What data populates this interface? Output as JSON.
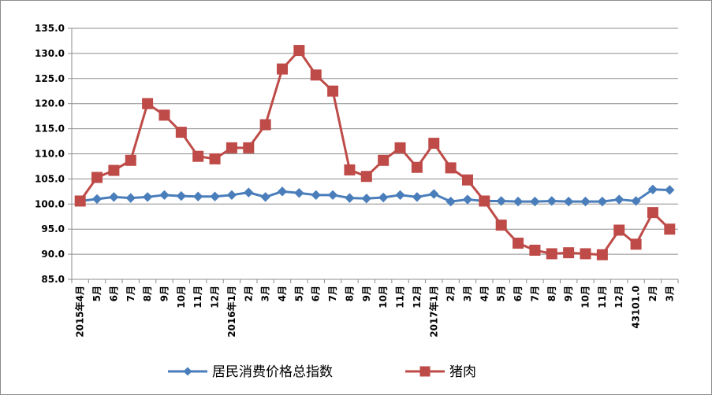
{
  "chart_data": {
    "type": "line",
    "categories": [
      "2015年4月",
      "5月",
      "6月",
      "7月",
      "8月",
      "9月",
      "10月",
      "11月",
      "12月",
      "2016年1月",
      "2月",
      "3月",
      "4月",
      "5月",
      "6月",
      "7月",
      "8月",
      "9月",
      "10月",
      "11月",
      "12月",
      "2017年1月",
      "2月",
      "3月",
      "4月",
      "5月",
      "6月",
      "7月",
      "8月",
      "9月",
      "10月",
      "11月",
      "12月",
      "43101.0",
      "2月",
      "3月"
    ],
    "series": [
      {
        "name": "居民消费价格总指数",
        "color": "#4a7ebb",
        "marker": "diamond",
        "values": [
          100.6,
          101.0,
          101.4,
          101.2,
          101.4,
          101.8,
          101.6,
          101.5,
          101.5,
          101.8,
          102.3,
          101.4,
          102.5,
          102.2,
          101.8,
          101.8,
          101.2,
          101.1,
          101.3,
          101.8,
          101.4,
          102.0,
          100.5,
          100.9,
          100.6,
          100.6,
          100.5,
          100.5,
          100.6,
          100.5,
          100.5,
          100.5,
          100.9,
          100.6,
          102.9,
          102.8
        ]
      },
      {
        "name": "猪肉",
        "color": "#be4b48",
        "marker": "square",
        "values": [
          100.6,
          105.3,
          106.7,
          108.7,
          120.0,
          117.7,
          114.3,
          109.5,
          109.0,
          111.2,
          111.2,
          115.8,
          126.9,
          130.6,
          125.7,
          122.5,
          106.8,
          105.5,
          108.7,
          111.2,
          107.3,
          112.1,
          107.2,
          104.8,
          100.6,
          95.8,
          92.2,
          90.8,
          90.1,
          90.3,
          90.1,
          89.9,
          94.8,
          92.0,
          98.3,
          95.0
        ]
      }
    ],
    "ylim": [
      85.0,
      135.0
    ],
    "yticks": [
      "85.0",
      "90.0",
      "95.0",
      "100.0",
      "105.0",
      "110.0",
      "115.0",
      "120.0",
      "125.0",
      "130.0",
      "135.0"
    ],
    "grid": true,
    "legend": "bottom"
  }
}
